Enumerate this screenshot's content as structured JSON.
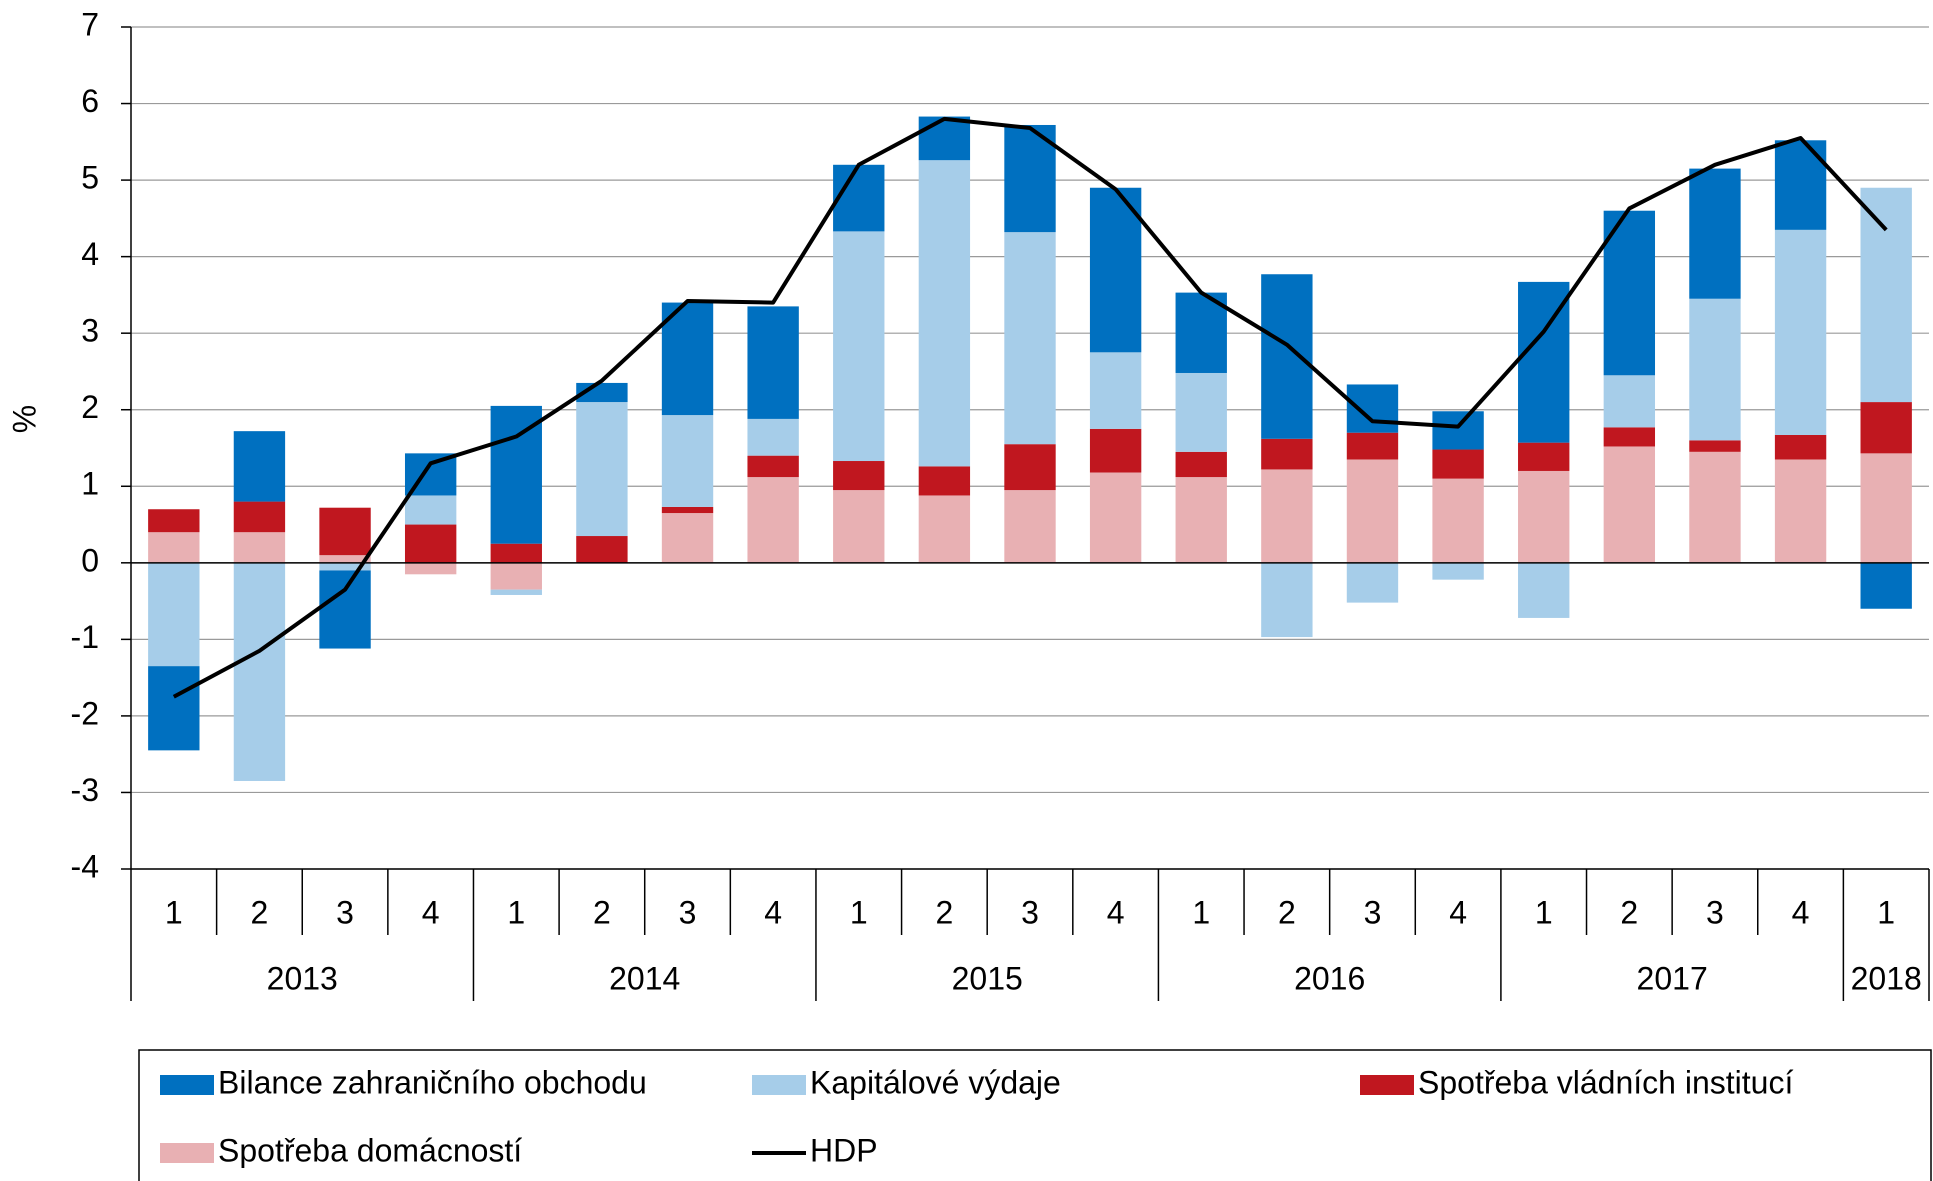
{
  "chart_data": {
    "type": "stacked_bar_line",
    "y_label": "%",
    "categories": [
      {
        "quarter": "1",
        "year": "2013"
      },
      {
        "quarter": "2",
        "year": "2013"
      },
      {
        "quarter": "3",
        "year": "2013"
      },
      {
        "quarter": "4",
        "year": "2013"
      },
      {
        "quarter": "1",
        "year": "2014"
      },
      {
        "quarter": "2",
        "year": "2014"
      },
      {
        "quarter": "3",
        "year": "2014"
      },
      {
        "quarter": "4",
        "year": "2014"
      },
      {
        "quarter": "1",
        "year": "2015"
      },
      {
        "quarter": "2",
        "year": "2015"
      },
      {
        "quarter": "3",
        "year": "2015"
      },
      {
        "quarter": "4",
        "year": "2015"
      },
      {
        "quarter": "1",
        "year": "2016"
      },
      {
        "quarter": "2",
        "year": "2016"
      },
      {
        "quarter": "3",
        "year": "2016"
      },
      {
        "quarter": "4",
        "year": "2016"
      },
      {
        "quarter": "1",
        "year": "2017"
      },
      {
        "quarter": "2",
        "year": "2017"
      },
      {
        "quarter": "3",
        "year": "2017"
      },
      {
        "quarter": "4",
        "year": "2017"
      },
      {
        "quarter": "1",
        "year": "2018"
      }
    ],
    "series": [
      {
        "name": "Bilance zahraničního obchodu",
        "type": "bar",
        "color": "#0070c0",
        "values": [
          -1.1,
          0.92,
          -1.02,
          0.55,
          1.8,
          0.25,
          1.47,
          1.47,
          0.87,
          0.57,
          1.4,
          2.15,
          1.05,
          2.15,
          0.63,
          0.5,
          2.1,
          2.15,
          1.7,
          1.17,
          -0.6
        ]
      },
      {
        "name": "Kapitálové výdaje",
        "type": "bar",
        "color": "#a6cde9",
        "values": [
          -1.35,
          -2.85,
          -0.1,
          0.38,
          -0.07,
          1.75,
          1.2,
          0.48,
          3.0,
          4.0,
          2.77,
          1.0,
          1.03,
          -0.97,
          -0.52,
          -0.22,
          -0.72,
          0.68,
          1.85,
          2.68,
          2.8
        ]
      },
      {
        "name": "Spotřeba vládních institucí",
        "type": "bar",
        "color": "#c0171f",
        "values": [
          0.3,
          0.4,
          0.62,
          0.5,
          0.25,
          0.35,
          0.08,
          0.28,
          0.38,
          0.38,
          0.6,
          0.57,
          0.33,
          0.4,
          0.35,
          0.38,
          0.37,
          0.25,
          0.15,
          0.32,
          0.67
        ]
      },
      {
        "name": "Spotřeba domácností",
        "type": "bar",
        "color": "#e8b0b3",
        "values": [
          0.4,
          0.4,
          0.1,
          -0.15,
          -0.35,
          0,
          0.65,
          1.12,
          0.95,
          0.88,
          0.95,
          1.18,
          1.12,
          1.22,
          1.35,
          1.1,
          1.2,
          1.52,
          1.45,
          1.35,
          1.43
        ]
      },
      {
        "name": "HDP",
        "type": "line",
        "color": "#000000",
        "values": [
          -1.75,
          -1.15,
          -0.35,
          1.3,
          1.65,
          2.38,
          3.42,
          3.4,
          5.2,
          5.8,
          5.68,
          4.88,
          3.53,
          2.85,
          1.85,
          1.78,
          3.02,
          4.63,
          5.2,
          5.55,
          4.35
        ]
      }
    ],
    "ylim": [
      -4,
      7
    ],
    "yticks": [
      -4,
      -3,
      -2,
      -1,
      0,
      1,
      2,
      3,
      4,
      5,
      6,
      7
    ],
    "grid": true
  }
}
